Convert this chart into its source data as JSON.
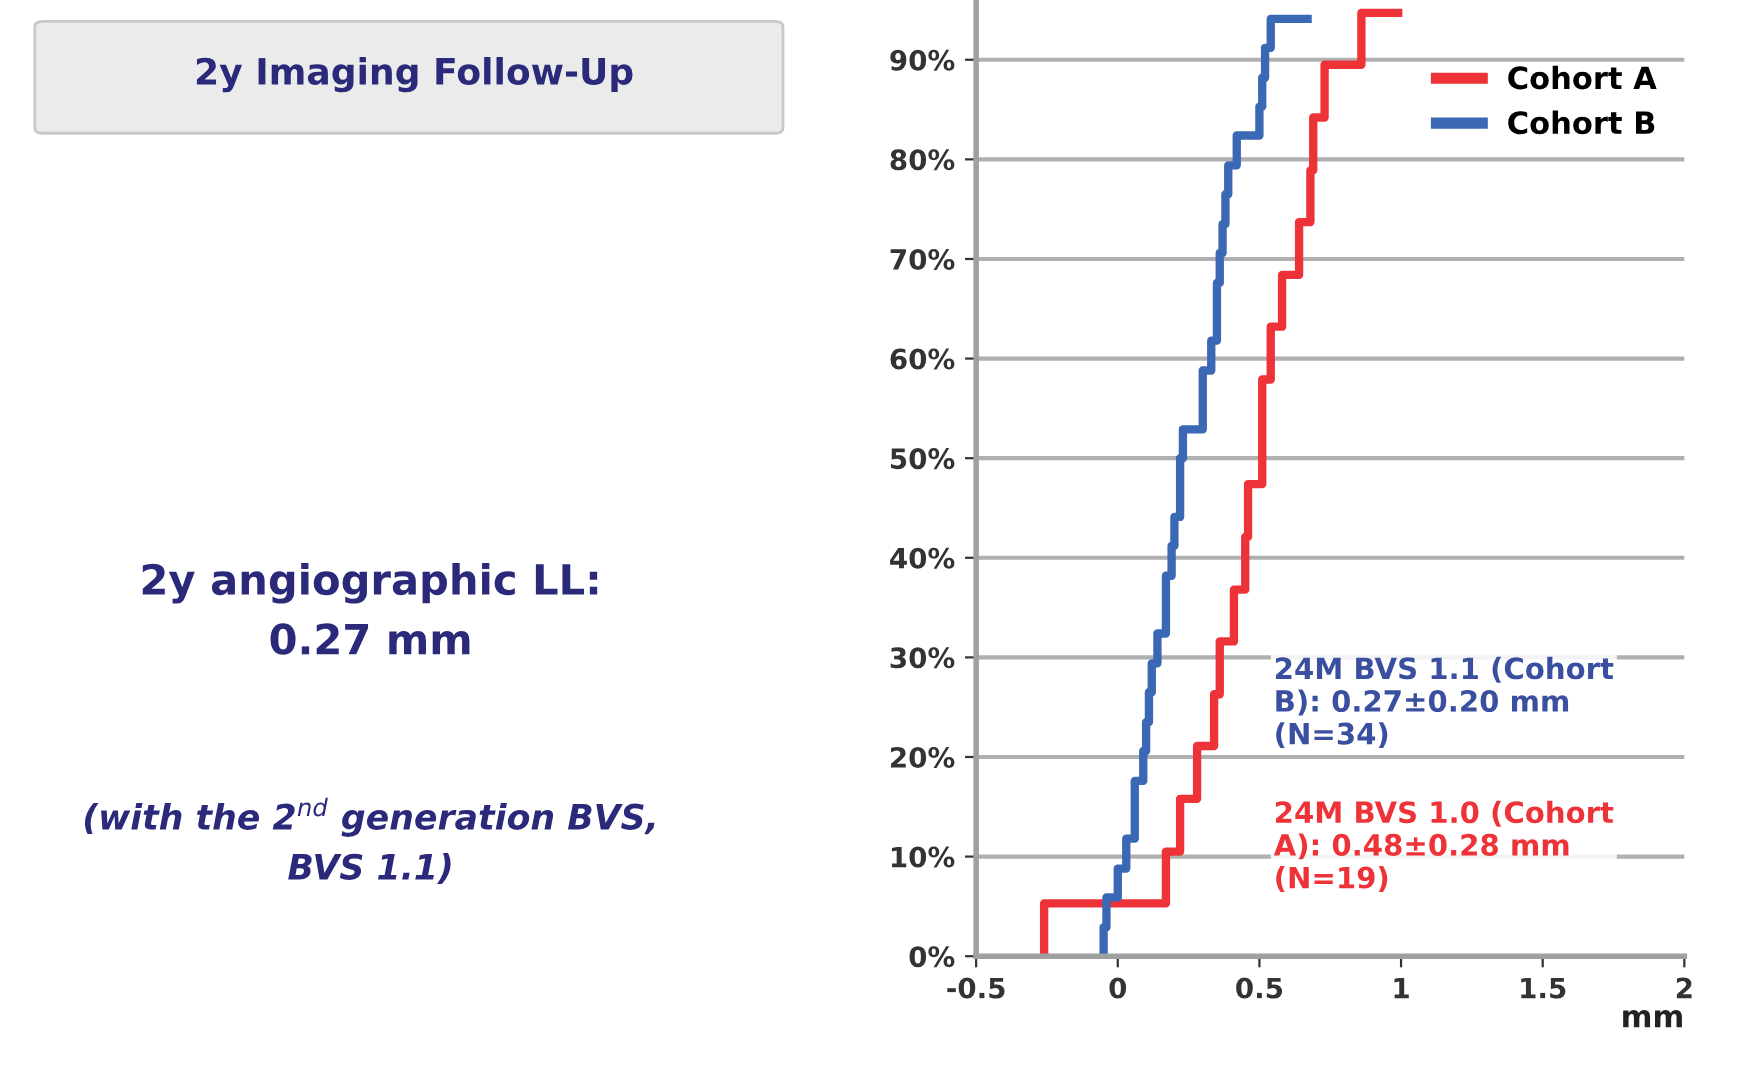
{
  "chart_data": {
    "type": "step",
    "title": "2y Imaging Follow-Up",
    "xlabel": "mm",
    "series": [
      {
        "name": "Cohort A",
        "color": "#ee3338",
        "x": [
          -0.26,
          -0.26,
          0.17,
          0.22,
          0.28,
          0.34,
          0.36,
          0.41,
          0.45,
          0.46,
          0.51,
          0.51,
          0.54,
          0.58,
          0.64,
          0.68,
          0.69,
          0.73,
          0.86,
          0.99
        ],
        "values": [
          0,
          5.3,
          10.5,
          15.8,
          21.1,
          26.3,
          31.6,
          36.8,
          42.1,
          47.4,
          52.6,
          57.9,
          63.2,
          68.4,
          73.7,
          78.9,
          84.2,
          89.5,
          94.7,
          94.7
        ]
      },
      {
        "name": "Cohort B",
        "color": "#3a68b4",
        "x": [
          -0.05,
          -0.05,
          -0.04,
          0.0,
          0.03,
          0.06,
          0.06,
          0.09,
          0.1,
          0.11,
          0.12,
          0.14,
          0.17,
          0.17,
          0.19,
          0.2,
          0.22,
          0.22,
          0.23,
          0.3,
          0.3,
          0.33,
          0.35,
          0.35,
          0.36,
          0.37,
          0.38,
          0.39,
          0.42,
          0.5,
          0.51,
          0.52,
          0.54,
          0.67
        ],
        "values": [
          0,
          2.9,
          5.9,
          8.8,
          11.8,
          14.7,
          17.6,
          20.6,
          23.5,
          26.5,
          29.4,
          32.4,
          35.3,
          38.2,
          41.2,
          44.1,
          47.1,
          50.0,
          52.9,
          55.9,
          58.8,
          61.8,
          64.7,
          67.6,
          70.6,
          73.5,
          76.5,
          79.4,
          82.4,
          85.3,
          88.2,
          91.2,
          94.1,
          94.1
        ]
      }
    ],
    "xlim": [
      -0.5,
      2
    ],
    "xticks": [
      -0.5,
      0,
      0.5,
      1,
      1.5,
      2
    ],
    "ylim": [
      0,
      96
    ],
    "yticks": [
      {
        "value": 0,
        "label": "0%"
      },
      {
        "value": 10,
        "label": "10%"
      },
      {
        "value": 20,
        "label": "20%"
      },
      {
        "value": 30,
        "label": "30%"
      },
      {
        "value": 40,
        "label": "40%"
      },
      {
        "value": 50,
        "label": "50%"
      },
      {
        "value": 60,
        "label": "60%"
      },
      {
        "value": 70,
        "label": "70%"
      },
      {
        "value": 80,
        "label": "80%"
      },
      {
        "value": 90,
        "label": "90%"
      }
    ],
    "grid": "y",
    "legend": "top right",
    "line_style": "solid",
    "marker": "none",
    "annotations": [
      "2y angiographic LL:\n0.27 mm",
      "(with the 2$^{nd}$ generation BVS,\nBVS 1.1)",
      "24M BVS 1.1 (Cohort\nB): 0.27±0.20 mm\n(N=34)",
      "24M BVS 1.0 (Cohort\nA): 0.48±0.28 mm\n(N=19)"
    ]
  }
}
